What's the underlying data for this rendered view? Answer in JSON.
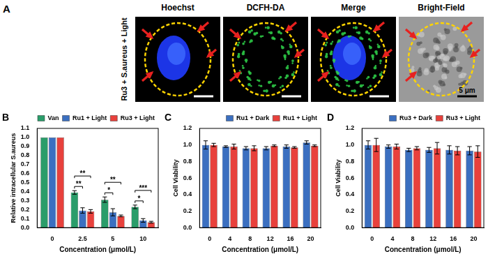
{
  "panel_a": {
    "panel_label": "A",
    "row_label": "Ru3 + S.aureus + Light",
    "columns": [
      "Hoechst",
      "DCFH-DA",
      "Merge",
      "Bright-Field"
    ],
    "scale_bar": "5 μm"
  },
  "chart_data": [
    {
      "type": "bar",
      "panel_label": "B",
      "x_label": "Concentration (μmol/L)",
      "y_label": "Relative intracellular S.aureus",
      "categories": [
        "0",
        "2.5",
        "5",
        "10"
      ],
      "series": [
        {
          "name": "Van",
          "color": "#2a9d6a",
          "values": [
            1.0,
            0.39,
            0.31,
            0.23
          ],
          "errors": [
            0,
            0.02,
            0.03,
            0.02
          ]
        },
        {
          "name": "Ru1 + Light",
          "color": "#3b6fc0",
          "values": [
            1.0,
            0.19,
            0.17,
            0.08
          ],
          "errors": [
            0,
            0.03,
            0.04,
            0.02
          ]
        },
        {
          "name": "Ru3 + Light",
          "color": "#e8413c",
          "values": [
            1.0,
            0.18,
            0.13,
            0.06
          ],
          "errors": [
            0,
            0.02,
            0.01,
            0.01
          ]
        }
      ],
      "annotations": [
        {
          "category": "2.5",
          "from": "Van",
          "to": "Ru1 + Light",
          "label": "**"
        },
        {
          "category": "2.5",
          "from": "Van",
          "to": "Ru3 + Light",
          "label": "**"
        },
        {
          "category": "5",
          "from": "Van",
          "to": "Ru1 + Light",
          "label": "*"
        },
        {
          "category": "5",
          "from": "Van",
          "to": "Ru3 + Light",
          "label": "**"
        },
        {
          "category": "10",
          "from": "Van",
          "to": "Ru1 + Light",
          "label": "*"
        },
        {
          "category": "10",
          "from": "Van",
          "to": "Ru3 + Light",
          "label": "***"
        }
      ],
      "ylim": [
        0,
        1.1
      ],
      "yticks": [
        {
          "value": 0,
          "label": "0.0"
        },
        0.1,
        0.2,
        0.3,
        0.4,
        0.5,
        0.6,
        0.7,
        0.8,
        0.9,
        {
          "value": 1,
          "label": "1.0"
        },
        1.1
      ],
      "grid": false,
      "legend": "upper right"
    },
    {
      "type": "bar",
      "panel_label": "C",
      "x_label": "Concentration (μmol/L)",
      "y_label": "Cell Viability",
      "categories": [
        "0",
        "4",
        "8",
        "12",
        "16",
        "20"
      ],
      "series": [
        {
          "name": "Ru1 + Dark",
          "color": "#3b6fc0",
          "values": [
            1.0,
            0.98,
            0.96,
            0.96,
            0.98,
            1.03
          ],
          "errors": [
            0.05,
            0.01,
            0.02,
            0.02,
            0.02,
            0.02
          ]
        },
        {
          "name": "Ru1 + Light",
          "color": "#e8413c",
          "values": [
            1.0,
            0.98,
            0.96,
            0.99,
            0.97,
            0.99
          ],
          "errors": [
            0.02,
            0.03,
            0.03,
            0.01,
            0.01,
            0.01
          ]
        }
      ],
      "ylim": [
        0,
        1.2
      ],
      "yticks": [
        {
          "value": 0,
          "label": "0.0"
        },
        0.2,
        0.4,
        0.6,
        0.8,
        {
          "value": 1,
          "label": "1.0"
        },
        1.2
      ],
      "grid": false,
      "legend": "upper right"
    },
    {
      "type": "bar",
      "panel_label": "D",
      "x_label": "Concentration (μmol/L)",
      "y_label": "Cell Viability",
      "categories": [
        "0",
        "4",
        "8",
        "12",
        "16",
        "20"
      ],
      "series": [
        {
          "name": "Ru3 + Dark",
          "color": "#3b6fc0",
          "values": [
            1.0,
            0.98,
            0.94,
            0.94,
            0.94,
            0.93
          ],
          "errors": [
            0.05,
            0.02,
            0.02,
            0.03,
            0.05,
            0.05
          ]
        },
        {
          "name": "Ru3 + Light",
          "color": "#e8413c",
          "values": [
            1.0,
            0.98,
            0.96,
            0.96,
            0.93,
            0.92
          ],
          "errors": [
            0.08,
            0.03,
            0.02,
            0.07,
            0.05,
            0.07
          ]
        }
      ],
      "ylim": [
        0,
        1.2
      ],
      "yticks": [
        {
          "value": 0,
          "label": "0.0"
        },
        0.2,
        0.4,
        0.6,
        0.8,
        {
          "value": 1,
          "label": "1.0"
        },
        1.2
      ],
      "grid": false,
      "legend": "upper right"
    }
  ]
}
